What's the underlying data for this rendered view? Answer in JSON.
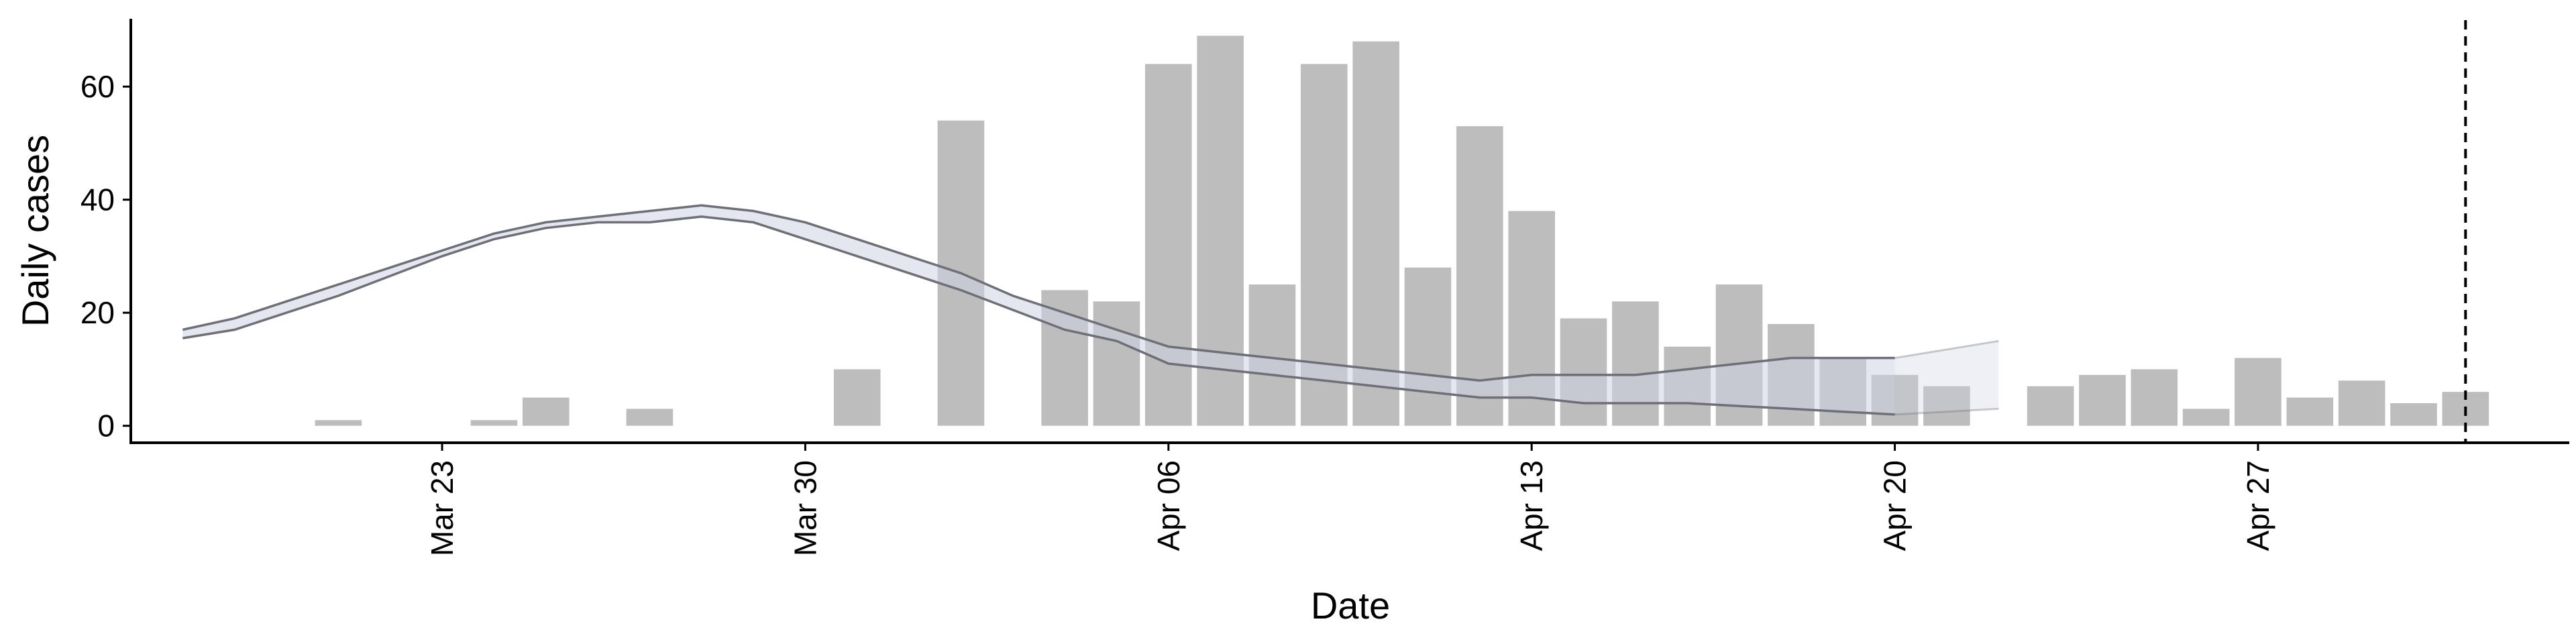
{
  "chart_data": {
    "type": "bar",
    "xlabel": "Date",
    "ylabel": "Daily cases",
    "ylim": [
      -3,
      72
    ],
    "x_range": [
      "2020-03-17",
      "2020-05-03"
    ],
    "y_ticks": [
      0,
      20,
      40,
      60
    ],
    "x_ticks": [
      {
        "date": "2020-03-23",
        "label": "Mar 23"
      },
      {
        "date": "2020-03-30",
        "label": "Mar 30"
      },
      {
        "date": "2020-04-06",
        "label": "Apr 06"
      },
      {
        "date": "2020-04-13",
        "label": "Apr 13"
      },
      {
        "date": "2020-04-20",
        "label": "Apr 20"
      },
      {
        "date": "2020-04-27",
        "label": "Apr 27"
      }
    ],
    "grid": false,
    "bar_color": "#bdbdbd",
    "bars": [
      {
        "date": "2020-03-21",
        "value": 1
      },
      {
        "date": "2020-03-24",
        "value": 1
      },
      {
        "date": "2020-03-25",
        "value": 5
      },
      {
        "date": "2020-03-27",
        "value": 3
      },
      {
        "date": "2020-03-31",
        "value": 10
      },
      {
        "date": "2020-04-02",
        "value": 54
      },
      {
        "date": "2020-04-04",
        "value": 24
      },
      {
        "date": "2020-04-05",
        "value": 22
      },
      {
        "date": "2020-04-06",
        "value": 64
      },
      {
        "date": "2020-04-07",
        "value": 69
      },
      {
        "date": "2020-04-08",
        "value": 25
      },
      {
        "date": "2020-04-09",
        "value": 64
      },
      {
        "date": "2020-04-10",
        "value": 68
      },
      {
        "date": "2020-04-11",
        "value": 28
      },
      {
        "date": "2020-04-12",
        "value": 53
      },
      {
        "date": "2020-04-13",
        "value": 38
      },
      {
        "date": "2020-04-14",
        "value": 19
      },
      {
        "date": "2020-04-15",
        "value": 22
      },
      {
        "date": "2020-04-16",
        "value": 14
      },
      {
        "date": "2020-04-17",
        "value": 25
      },
      {
        "date": "2020-04-18",
        "value": 18
      },
      {
        "date": "2020-04-19",
        "value": 12
      },
      {
        "date": "2020-04-20",
        "value": 9
      },
      {
        "date": "2020-04-21",
        "value": 7
      },
      {
        "date": "2020-04-23",
        "value": 7
      },
      {
        "date": "2020-04-24",
        "value": 9
      },
      {
        "date": "2020-04-25",
        "value": 10
      },
      {
        "date": "2020-04-26",
        "value": 3
      },
      {
        "date": "2020-04-27",
        "value": 12
      },
      {
        "date": "2020-04-28",
        "value": 5
      },
      {
        "date": "2020-04-29",
        "value": 8
      },
      {
        "date": "2020-04-30",
        "value": 4
      },
      {
        "date": "2020-05-01",
        "value": 6
      }
    ],
    "band_color": "#cfd3e3",
    "band_line_color": "#6f6f78",
    "band": [
      {
        "date": "2020-03-18",
        "lower": 15.5,
        "upper": 17
      },
      {
        "date": "2020-03-19",
        "lower": 17,
        "upper": 19
      },
      {
        "date": "2020-03-20",
        "lower": 20,
        "upper": 22
      },
      {
        "date": "2020-03-21",
        "lower": 23,
        "upper": 25
      },
      {
        "date": "2020-03-22",
        "lower": 26.5,
        "upper": 28
      },
      {
        "date": "2020-03-23",
        "lower": 30,
        "upper": 31
      },
      {
        "date": "2020-03-24",
        "lower": 33,
        "upper": 34
      },
      {
        "date": "2020-03-25",
        "lower": 35,
        "upper": 36
      },
      {
        "date": "2020-03-26",
        "lower": 36,
        "upper": 37
      },
      {
        "date": "2020-03-27",
        "lower": 36,
        "upper": 38
      },
      {
        "date": "2020-03-28",
        "lower": 37,
        "upper": 39
      },
      {
        "date": "2020-03-29",
        "lower": 36,
        "upper": 38
      },
      {
        "date": "2020-03-30",
        "lower": 33,
        "upper": 36
      },
      {
        "date": "2020-03-31",
        "lower": 30,
        "upper": 33
      },
      {
        "date": "2020-04-01",
        "lower": 27,
        "upper": 30
      },
      {
        "date": "2020-04-02",
        "lower": 24,
        "upper": 27
      },
      {
        "date": "2020-04-03",
        "lower": 20.5,
        "upper": 23
      },
      {
        "date": "2020-04-04",
        "lower": 17,
        "upper": 20
      },
      {
        "date": "2020-04-05",
        "lower": 15,
        "upper": 17
      },
      {
        "date": "2020-04-06",
        "lower": 11,
        "upper": 14
      },
      {
        "date": "2020-04-07",
        "lower": 10,
        "upper": 13
      },
      {
        "date": "2020-04-08",
        "lower": 9,
        "upper": 12
      },
      {
        "date": "2020-04-09",
        "lower": 8,
        "upper": 11
      },
      {
        "date": "2020-04-10",
        "lower": 7,
        "upper": 10
      },
      {
        "date": "2020-04-11",
        "lower": 6,
        "upper": 9
      },
      {
        "date": "2020-04-12",
        "lower": 5,
        "upper": 8
      },
      {
        "date": "2020-04-13",
        "lower": 5,
        "upper": 9
      },
      {
        "date": "2020-04-14",
        "lower": 4,
        "upper": 9
      },
      {
        "date": "2020-04-15",
        "lower": 4,
        "upper": 9
      },
      {
        "date": "2020-04-16",
        "lower": 4,
        "upper": 10
      },
      {
        "date": "2020-04-17",
        "lower": 3.5,
        "upper": 11
      },
      {
        "date": "2020-04-18",
        "lower": 3,
        "upper": 12
      },
      {
        "date": "2020-04-19",
        "lower": 2.5,
        "upper": 12
      },
      {
        "date": "2020-04-20",
        "lower": 2,
        "upper": 12
      }
    ],
    "band_extension": [
      {
        "date": "2020-04-20",
        "lower": 2,
        "upper": 12
      },
      {
        "date": "2020-04-21",
        "lower": 2.5,
        "upper": 13.5
      },
      {
        "date": "2020-04-22",
        "lower": 3,
        "upper": 15
      }
    ],
    "reference_line": {
      "date": "2020-05-01",
      "style": "dashed"
    }
  }
}
